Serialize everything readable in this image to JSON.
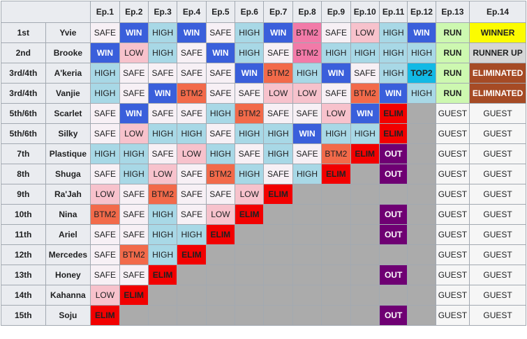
{
  "header": {
    "corner": "",
    "episodes": [
      "Ep.1",
      "Ep.2",
      "Ep.3",
      "Ep.4",
      "Ep.5",
      "Ep.6",
      "Ep.7",
      "Ep.8",
      "Ep.9",
      "Ep.10",
      "Ep.11",
      "Ep.12",
      "Ep.13",
      "Ep.14"
    ]
  },
  "rows": [
    {
      "place": "1st",
      "name": "Yvie",
      "cells": [
        "SAFE",
        "WIN",
        "HIGH",
        "WIN",
        "SAFE",
        "HIGH",
        "WIN",
        "BTM2",
        "SAFE",
        "LOW",
        "HIGH",
        "WIN",
        "RUN",
        "WINNER"
      ],
      "styles": [
        "SAFE",
        "WIN",
        "HIGH",
        "WIN",
        "SAFE",
        "HIGH",
        "WIN",
        "BTM2p",
        "SAFE",
        "LOW",
        "HIGH",
        "WIN",
        "RUN",
        "WINNER"
      ]
    },
    {
      "place": "2nd",
      "name": "Brooke",
      "cells": [
        "WIN",
        "LOW",
        "HIGH",
        "SAFE",
        "WIN",
        "HIGH",
        "SAFE",
        "BTM2",
        "HIGH",
        "HIGH",
        "HIGH",
        "HIGH",
        "RUN",
        "RUNNER UP"
      ],
      "styles": [
        "WIN",
        "LOW",
        "HIGH",
        "SAFE",
        "WIN",
        "HIGH",
        "SAFE",
        "BTM2p",
        "HIGH",
        "HIGH",
        "HIGH",
        "HIGH",
        "RUN",
        "RUNNERUP"
      ]
    },
    {
      "place": "3rd/4th",
      "name": "A'keria",
      "cells": [
        "HIGH",
        "SAFE",
        "SAFE",
        "SAFE",
        "SAFE",
        "WIN",
        "BTM2",
        "HIGH",
        "WIN",
        "SAFE",
        "HIGH",
        "TOP2",
        "RUN",
        "ELIMINATED"
      ],
      "styles": [
        "HIGH",
        "SAFE",
        "SAFE",
        "SAFE",
        "SAFE",
        "WIN",
        "BTM2",
        "HIGH",
        "WIN",
        "SAFE",
        "HIGH",
        "TOP2",
        "RUN",
        "ELIMINATED"
      ]
    },
    {
      "place": "3rd/4th",
      "name": "Vanjie",
      "cells": [
        "HIGH",
        "SAFE",
        "WIN",
        "BTM2",
        "SAFE",
        "SAFE",
        "LOW",
        "LOW",
        "SAFE",
        "BTM2",
        "WIN",
        "HIGH",
        "RUN",
        "ELIMINATED"
      ],
      "styles": [
        "HIGH",
        "SAFE",
        "WIN",
        "BTM2",
        "SAFE",
        "SAFE",
        "LOW",
        "LOW",
        "SAFE",
        "BTM2",
        "WIN",
        "HIGH",
        "RUN",
        "ELIMINATED"
      ]
    },
    {
      "place": "5th/6th",
      "name": "Scarlet",
      "cells": [
        "SAFE",
        "WIN",
        "SAFE",
        "SAFE",
        "HIGH",
        "BTM2",
        "SAFE",
        "SAFE",
        "LOW",
        "WIN",
        "ELIM",
        "",
        "GUEST",
        "GUEST"
      ],
      "styles": [
        "SAFE",
        "WIN",
        "SAFE",
        "SAFE",
        "HIGH",
        "BTM2",
        "SAFE",
        "SAFE",
        "LOW",
        "WIN",
        "ELIM",
        "NA",
        "GUEST",
        "GUEST"
      ]
    },
    {
      "place": "5th/6th",
      "name": "Silky",
      "cells": [
        "SAFE",
        "LOW",
        "HIGH",
        "HIGH",
        "SAFE",
        "HIGH",
        "HIGH",
        "WIN",
        "HIGH",
        "HIGH",
        "ELIM",
        "",
        "GUEST",
        "GUEST"
      ],
      "styles": [
        "SAFE",
        "LOW",
        "HIGH",
        "HIGH",
        "SAFE",
        "HIGH",
        "HIGH",
        "WIN",
        "HIGH",
        "HIGH",
        "ELIM",
        "NA",
        "GUEST",
        "GUEST"
      ]
    },
    {
      "place": "7th",
      "name": "Plastique",
      "cells": [
        "HIGH",
        "HIGH",
        "SAFE",
        "LOW",
        "HIGH",
        "SAFE",
        "HIGH",
        "SAFE",
        "BTM2",
        "ELIM",
        "OUT",
        "",
        "GUEST",
        "GUEST"
      ],
      "styles": [
        "HIGH",
        "HIGH",
        "SAFE",
        "LOW",
        "HIGH",
        "SAFE",
        "HIGH",
        "SAFE",
        "BTM2",
        "ELIM",
        "OUT",
        "NA",
        "GUEST",
        "GUEST"
      ]
    },
    {
      "place": "8th",
      "name": "Shuga",
      "cells": [
        "SAFE",
        "HIGH",
        "LOW",
        "SAFE",
        "BTM2",
        "HIGH",
        "SAFE",
        "HIGH",
        "ELIM",
        "",
        "OUT",
        "",
        "GUEST",
        "GUEST"
      ],
      "styles": [
        "SAFE",
        "HIGH",
        "LOW",
        "SAFE",
        "BTM2",
        "HIGH",
        "SAFE",
        "HIGH",
        "ELIM",
        "NA",
        "OUT",
        "NA",
        "GUEST",
        "GUEST"
      ]
    },
    {
      "place": "9th",
      "name": "Ra'Jah",
      "cells": [
        "LOW",
        "SAFE",
        "BTM2",
        "SAFE",
        "SAFE",
        "LOW",
        "ELIM",
        "",
        "",
        "",
        "",
        "",
        "GUEST",
        "GUEST"
      ],
      "styles": [
        "LOW",
        "SAFE",
        "BTM2",
        "SAFE",
        "SAFE",
        "LOW",
        "ELIM",
        "NA",
        "NA",
        "NA",
        "NA",
        "NA",
        "GUEST",
        "GUEST"
      ]
    },
    {
      "place": "10th",
      "name": "Nina",
      "cells": [
        "BTM2",
        "SAFE",
        "HIGH",
        "SAFE",
        "LOW",
        "ELIM",
        "",
        "",
        "",
        "",
        "OUT",
        "",
        "GUEST",
        "GUEST"
      ],
      "styles": [
        "BTM2",
        "SAFE",
        "HIGH",
        "SAFE",
        "LOW",
        "ELIM",
        "NA",
        "NA",
        "NA",
        "NA",
        "OUT",
        "NA",
        "GUEST",
        "GUEST"
      ]
    },
    {
      "place": "11th",
      "name": "Ariel",
      "cells": [
        "SAFE",
        "SAFE",
        "HIGH",
        "HIGH",
        "ELIM",
        "",
        "",
        "",
        "",
        "",
        "OUT",
        "",
        "GUEST",
        "GUEST"
      ],
      "styles": [
        "SAFE",
        "SAFE",
        "HIGH",
        "HIGH",
        "ELIM",
        "NA",
        "NA",
        "NA",
        "NA",
        "NA",
        "OUT",
        "NA",
        "GUEST",
        "GUEST"
      ]
    },
    {
      "place": "12th",
      "name": "Mercedes",
      "cells": [
        "SAFE",
        "BTM2",
        "HIGH",
        "ELIM",
        "",
        "",
        "",
        "",
        "",
        "",
        "",
        "",
        "GUEST",
        "GUEST"
      ],
      "styles": [
        "SAFE",
        "BTM2",
        "HIGH",
        "ELIM",
        "NA",
        "NA",
        "NA",
        "NA",
        "NA",
        "NA",
        "NA",
        "NA",
        "GUEST",
        "GUEST"
      ]
    },
    {
      "place": "13th",
      "name": "Honey",
      "cells": [
        "SAFE",
        "SAFE",
        "ELIM",
        "",
        "",
        "",
        "",
        "",
        "",
        "",
        "OUT",
        "",
        "GUEST",
        "GUEST"
      ],
      "styles": [
        "SAFE",
        "SAFE",
        "ELIM",
        "NA",
        "NA",
        "NA",
        "NA",
        "NA",
        "NA",
        "NA",
        "OUT",
        "NA",
        "GUEST",
        "GUEST"
      ]
    },
    {
      "place": "14th",
      "name": "Kahanna",
      "cells": [
        "LOW",
        "ELIM",
        "",
        "",
        "",
        "",
        "",
        "",
        "",
        "",
        "",
        "",
        "GUEST",
        "GUEST"
      ],
      "styles": [
        "LOW",
        "ELIM",
        "NA",
        "NA",
        "NA",
        "NA",
        "NA",
        "NA",
        "NA",
        "NA",
        "NA",
        "NA",
        "GUEST",
        "GUEST"
      ]
    },
    {
      "place": "15th",
      "name": "Soju",
      "cells": [
        "ELIM",
        "",
        "",
        "",
        "",
        "",
        "",
        "",
        "",
        "",
        "OUT",
        "",
        "GUEST",
        "GUEST"
      ],
      "styles": [
        "ELIM",
        "NA",
        "NA",
        "NA",
        "NA",
        "NA",
        "NA",
        "NA",
        "NA",
        "NA",
        "OUT",
        "NA",
        "GUEST",
        "GUEST"
      ]
    }
  ],
  "colors": {
    "WIN": "#3a5fdb",
    "HIGH": "#a8d8e6",
    "SAFE": "#f7f0f5",
    "LOW": "#f7c2cc",
    "BTM2": "#f26a4a",
    "BTM2_pink": "#f27aa8",
    "ELIM": "#f20000",
    "OUT": "#6f0073",
    "TOP2": "#12b9e5",
    "RUN": "#cdf8b0",
    "WINNER": "#fcfc00",
    "RUNNER_UP": "#d6d6d6",
    "ELIMINATED": "#a64b25",
    "GUEST": "#f6f6f6",
    "not_present": "#ababab"
  }
}
